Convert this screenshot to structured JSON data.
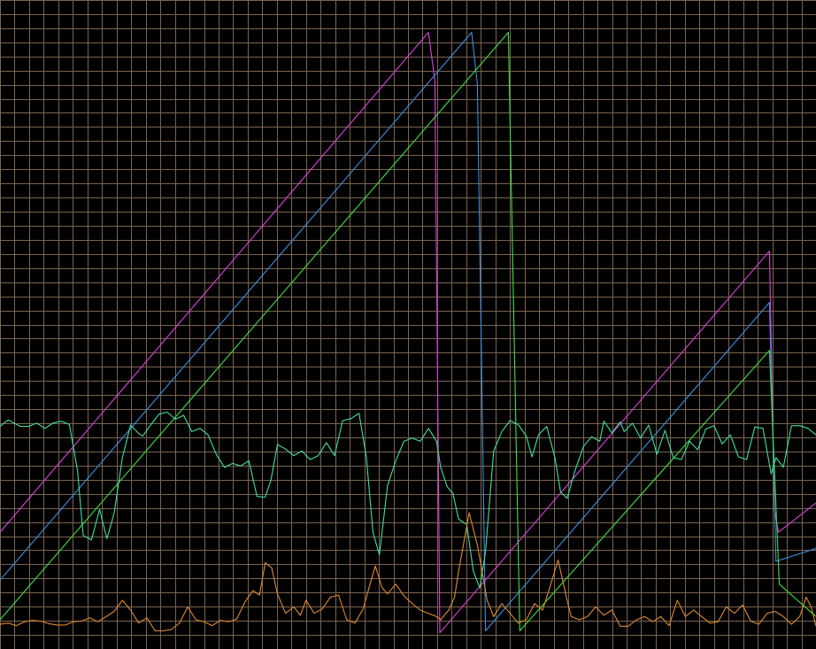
{
  "chart_data": {
    "type": "line",
    "grid": true,
    "background": "#000000",
    "grid_color": "#7a6450",
    "x_range": [
      0,
      100
    ],
    "y_range": [
      0,
      100
    ],
    "x_divisions": 56,
    "y_divisions": 46,
    "series": [
      {
        "color": "#e040e0",
        "points": [
          [
            0,
            18.0
          ],
          [
            52.5,
            95.0
          ],
          [
            53.3,
            87.5
          ],
          [
            53.9,
            2.5
          ],
          [
            94.3,
            61.3
          ],
          [
            94.9,
            21.6
          ],
          [
            95.4,
            18.0
          ],
          [
            100,
            22.5
          ]
        ]
      },
      {
        "color": "#3d8fe0",
        "points": [
          [
            0,
            10.6
          ],
          [
            57.8,
            95.0
          ],
          [
            58.5,
            87.0
          ],
          [
            59.5,
            2.8
          ],
          [
            94.3,
            53.4
          ],
          [
            95.1,
            13.5
          ],
          [
            100,
            15.5
          ]
        ]
      },
      {
        "color": "#40e040",
        "points": [
          [
            0,
            4.5
          ],
          [
            62.3,
            95.0
          ],
          [
            63.7,
            2.8
          ],
          [
            94.3,
            46.0
          ],
          [
            95.5,
            10.0
          ],
          [
            100,
            5.0
          ]
        ]
      },
      {
        "color": "#40e0a0",
        "points": [
          [
            0,
            34.3
          ],
          [
            1.0,
            35.3
          ],
          [
            2.5,
            34.3
          ],
          [
            3.5,
            34.3
          ],
          [
            4.5,
            34.8
          ],
          [
            5.5,
            34.0
          ],
          [
            6.5,
            34.8
          ],
          [
            7.5,
            35.1
          ],
          [
            8.5,
            34.6
          ],
          [
            9.5,
            27.5
          ],
          [
            10.2,
            17.5
          ],
          [
            11.2,
            16.8
          ],
          [
            12.2,
            21.5
          ],
          [
            13.1,
            17.0
          ],
          [
            14.0,
            21.0
          ],
          [
            15.0,
            29.5
          ],
          [
            16.0,
            34.5
          ],
          [
            17.0,
            33.2
          ],
          [
            17.5,
            32.8
          ],
          [
            18.5,
            34.6
          ],
          [
            19.5,
            36.2
          ],
          [
            20.5,
            36.5
          ],
          [
            21.5,
            35.4
          ],
          [
            22.5,
            36.0
          ],
          [
            23.5,
            33.5
          ],
          [
            24.5,
            34.0
          ],
          [
            25.5,
            33.0
          ],
          [
            26.5,
            30.0
          ],
          [
            27.5,
            28.0
          ],
          [
            28.5,
            28.6
          ],
          [
            29.5,
            28.2
          ],
          [
            30.5,
            29.0
          ],
          [
            31.5,
            23.5
          ],
          [
            32.5,
            23.4
          ],
          [
            33.2,
            26.0
          ],
          [
            34.0,
            31.5
          ],
          [
            35.0,
            30.8
          ],
          [
            36.0,
            29.8
          ],
          [
            37.0,
            30.5
          ],
          [
            38.0,
            29.2
          ],
          [
            39.0,
            29.8
          ],
          [
            40.0,
            31.8
          ],
          [
            41.0,
            29.8
          ],
          [
            42.0,
            35.2
          ],
          [
            43.0,
            35.5
          ],
          [
            44.0,
            36.3
          ],
          [
            44.9,
            29.5
          ],
          [
            45.7,
            18.0
          ],
          [
            46.5,
            14.5
          ],
          [
            47.5,
            25.2
          ],
          [
            48.5,
            29.0
          ],
          [
            49.5,
            32.0
          ],
          [
            50.5,
            32.5
          ],
          [
            51.5,
            32.0
          ],
          [
            52.5,
            34.0
          ],
          [
            53.5,
            32.0
          ],
          [
            54.0,
            28.0
          ],
          [
            54.8,
            25.0
          ],
          [
            55.5,
            24.0
          ],
          [
            56.2,
            20.0
          ],
          [
            57.2,
            19.2
          ],
          [
            58.0,
            12.0
          ],
          [
            58.8,
            9.4
          ],
          [
            59.5,
            15.0
          ],
          [
            60.5,
            30.5
          ],
          [
            61.5,
            33.5
          ],
          [
            62.5,
            35.2
          ],
          [
            63.5,
            34.6
          ],
          [
            64.5,
            32.8
          ],
          [
            65.2,
            29.6
          ],
          [
            66.0,
            33.0
          ],
          [
            67.0,
            34.3
          ],
          [
            68.0,
            29.5
          ],
          [
            68.7,
            24.2
          ],
          [
            69.5,
            23.2
          ],
          [
            70.5,
            27.6
          ],
          [
            71.5,
            31.2
          ],
          [
            72.5,
            32.7
          ],
          [
            73.5,
            32.0
          ],
          [
            74.0,
            35.1
          ],
          [
            75.0,
            33.3
          ],
          [
            76.0,
            35.0
          ],
          [
            76.5,
            33.5
          ],
          [
            77.5,
            34.8
          ],
          [
            78.5,
            32.5
          ],
          [
            79.5,
            34.5
          ],
          [
            80.5,
            30.0
          ],
          [
            81.5,
            33.7
          ],
          [
            82.5,
            29.5
          ],
          [
            83.5,
            29.2
          ],
          [
            84.5,
            32.0
          ],
          [
            85.5,
            30.7
          ],
          [
            86.5,
            33.9
          ],
          [
            87.5,
            34.4
          ],
          [
            88.5,
            31.6
          ],
          [
            89.5,
            33.0
          ],
          [
            90.5,
            29.6
          ],
          [
            91.5,
            29.2
          ],
          [
            92.5,
            34.2
          ],
          [
            93.5,
            34.0
          ],
          [
            94.5,
            27.0
          ],
          [
            95.1,
            29.5
          ],
          [
            96.0,
            28.0
          ],
          [
            97.0,
            34.4
          ],
          [
            98.0,
            34.4
          ],
          [
            99.0,
            34.0
          ],
          [
            100,
            33.0
          ]
        ]
      },
      {
        "color": "#e08a30",
        "points": [
          [
            0,
            3.8
          ],
          [
            1.0,
            4.0
          ],
          [
            2.0,
            3.6
          ],
          [
            3.0,
            4.2
          ],
          [
            4.0,
            4.4
          ],
          [
            5.0,
            4.3
          ],
          [
            6.0,
            3.9
          ],
          [
            7.0,
            3.7
          ],
          [
            8.0,
            3.7
          ],
          [
            9.0,
            4.2
          ],
          [
            10.0,
            4.3
          ],
          [
            11.0,
            4.8
          ],
          [
            12.0,
            4.2
          ],
          [
            13.0,
            5.0
          ],
          [
            14.0,
            5.8
          ],
          [
            15.0,
            7.5
          ],
          [
            16.0,
            6.0
          ],
          [
            17.0,
            4.0
          ],
          [
            18.0,
            4.8
          ],
          [
            19.0,
            2.8
          ],
          [
            20.0,
            2.8
          ],
          [
            21.0,
            3.0
          ],
          [
            22.0,
            4.0
          ],
          [
            23.0,
            6.5
          ],
          [
            24.0,
            4.5
          ],
          [
            25.0,
            4.2
          ],
          [
            26.0,
            3.6
          ],
          [
            27.0,
            4.4
          ],
          [
            28.0,
            4.2
          ],
          [
            29.0,
            4.6
          ],
          [
            30.0,
            7.2
          ],
          [
            31.0,
            9.0
          ],
          [
            31.8,
            8.3
          ],
          [
            32.5,
            13.3
          ],
          [
            33.3,
            12.5
          ],
          [
            34.0,
            8.5
          ],
          [
            35.0,
            5.5
          ],
          [
            36.0,
            6.5
          ],
          [
            36.8,
            5.2
          ],
          [
            37.5,
            7.5
          ],
          [
            38.5,
            5.5
          ],
          [
            39.5,
            6.2
          ],
          [
            40.5,
            8.0
          ],
          [
            41.5,
            8.3
          ],
          [
            42.5,
            4.5
          ],
          [
            43.5,
            4.0
          ],
          [
            44.5,
            6.2
          ],
          [
            45.3,
            9.8
          ],
          [
            46.0,
            12.8
          ],
          [
            46.8,
            9.5
          ],
          [
            47.5,
            8.5
          ],
          [
            48.5,
            10.0
          ],
          [
            49.5,
            8.2
          ],
          [
            50.5,
            7.0
          ],
          [
            51.5,
            6.0
          ],
          [
            52.5,
            5.5
          ],
          [
            53.5,
            5.0
          ],
          [
            54.0,
            4.5
          ],
          [
            55.0,
            6.0
          ],
          [
            55.7,
            8.0
          ],
          [
            56.2,
            12.0
          ],
          [
            57.5,
            21.0
          ],
          [
            58.5,
            16.0
          ],
          [
            59.0,
            12.5
          ],
          [
            59.7,
            7.5
          ],
          [
            60.5,
            5.0
          ],
          [
            61.5,
            7.0
          ],
          [
            62.5,
            5.5
          ],
          [
            63.5,
            4.0
          ],
          [
            64.5,
            4.5
          ],
          [
            65.5,
            7.0
          ],
          [
            66.5,
            6.0
          ],
          [
            67.5,
            10.0
          ],
          [
            68.4,
            13.7
          ],
          [
            69.5,
            7.5
          ],
          [
            70.0,
            5.0
          ],
          [
            71.0,
            4.5
          ],
          [
            72.0,
            5.0
          ],
          [
            73.0,
            6.5
          ],
          [
            74.0,
            5.2
          ],
          [
            75.0,
            6.0
          ],
          [
            76.0,
            3.5
          ],
          [
            77.0,
            3.5
          ],
          [
            78.0,
            4.5
          ],
          [
            79.0,
            5.0
          ],
          [
            80.0,
            4.2
          ],
          [
            81.0,
            5.0
          ],
          [
            82.0,
            3.6
          ],
          [
            83.0,
            7.5
          ],
          [
            84.0,
            5.0
          ],
          [
            85.0,
            6.0
          ],
          [
            86.0,
            5.0
          ],
          [
            87.0,
            4.0
          ],
          [
            88.0,
            4.2
          ],
          [
            89.0,
            6.5
          ],
          [
            90.0,
            5.5
          ],
          [
            91.0,
            6.8
          ],
          [
            92.0,
            4.3
          ],
          [
            93.0,
            3.8
          ],
          [
            94.0,
            5.5
          ],
          [
            95.0,
            5.8
          ],
          [
            96.0,
            5.0
          ],
          [
            97.0,
            3.8
          ],
          [
            98.0,
            5.0
          ],
          [
            98.8,
            8.0
          ],
          [
            99.4,
            6.5
          ],
          [
            100,
            3.5
          ]
        ]
      }
    ]
  }
}
